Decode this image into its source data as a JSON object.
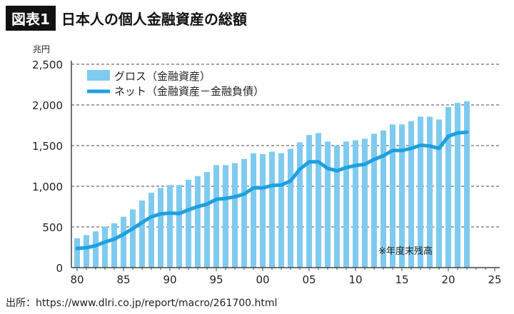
{
  "header": {
    "badge": "図表1",
    "title": "日本人の個人金融資産の総額"
  },
  "source": "出所：https://www.dlri.co.jp/report/macro/261700.html",
  "chart_data": {
    "type": "bar",
    "unit_label": "兆円",
    "note": "※年度末残高",
    "x": [
      1980,
      1981,
      1982,
      1983,
      1984,
      1985,
      1986,
      1987,
      1988,
      1989,
      1990,
      1991,
      1992,
      1993,
      1994,
      1995,
      1996,
      1997,
      1998,
      1999,
      2000,
      2001,
      2002,
      2003,
      2004,
      2005,
      2006,
      2007,
      2008,
      2009,
      2010,
      2011,
      2012,
      2013,
      2014,
      2015,
      2016,
      2017,
      2018,
      2019,
      2020,
      2021,
      2022
    ],
    "xticks": [
      {
        "v": 1980,
        "label": "80"
      },
      {
        "v": 1985,
        "label": "85"
      },
      {
        "v": 1990,
        "label": "90"
      },
      {
        "v": 1995,
        "label": "95"
      },
      {
        "v": 2000,
        "label": "00"
      },
      {
        "v": 2005,
        "label": "05"
      },
      {
        "v": 2010,
        "label": "10"
      },
      {
        "v": 2015,
        "label": "15"
      },
      {
        "v": 2020,
        "label": "20"
      },
      {
        "v": 2025,
        "label": "25"
      }
    ],
    "yticks": [
      {
        "v": 0,
        "label": "0"
      },
      {
        "v": 500,
        "label": "500"
      },
      {
        "v": 1000,
        "label": "1,000"
      },
      {
        "v": 1500,
        "label": "1,500"
      },
      {
        "v": 2000,
        "label": "2,000"
      },
      {
        "v": 2500,
        "label": "2,500"
      }
    ],
    "xlim": [
      1979.4,
      2025.5
    ],
    "ylim": [
      0,
      2500
    ],
    "grid": "horizontal-dashed",
    "legend_position": "top-left",
    "series": [
      {
        "name": "グロス（金融資産）",
        "type": "bar",
        "color": "#7fcbef",
        "values": [
          360,
          400,
          445,
          505,
          545,
          625,
          715,
          825,
          920,
          980,
          1015,
          1015,
          1080,
          1125,
          1175,
          1260,
          1260,
          1285,
          1335,
          1405,
          1395,
          1425,
          1405,
          1460,
          1540,
          1630,
          1655,
          1550,
          1500,
          1550,
          1565,
          1585,
          1645,
          1685,
          1760,
          1760,
          1800,
          1855,
          1855,
          1820,
          1975,
          2025,
          2045
        ]
      },
      {
        "name": "ネット（金融資産－金融負債）",
        "type": "line",
        "color": "#1ea0e0",
        "values": [
          235,
          245,
          270,
          315,
          350,
          410,
          480,
          555,
          625,
          660,
          670,
          665,
          710,
          750,
          780,
          840,
          850,
          870,
          905,
          980,
          980,
          1010,
          1015,
          1065,
          1210,
          1300,
          1300,
          1220,
          1190,
          1230,
          1255,
          1270,
          1330,
          1375,
          1440,
          1440,
          1465,
          1505,
          1495,
          1465,
          1615,
          1655,
          1665
        ]
      }
    ]
  }
}
